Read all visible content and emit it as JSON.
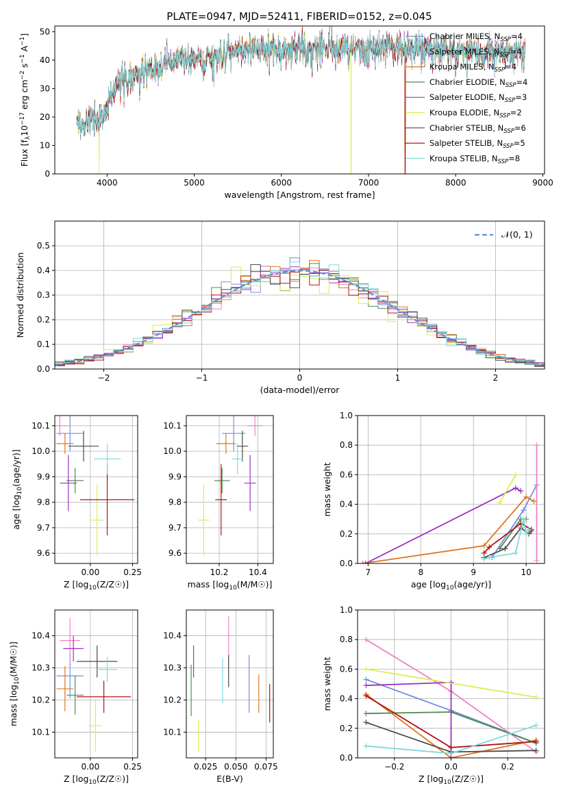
{
  "title": "PLATE=0947, MJD=52411, FIBERID=0152, z=0.045",
  "colors": {
    "Chabrier MILES": "#6f8fde",
    "Salpeter MILES": "#ee82c5",
    "Kroupa MILES": "#e0751e",
    "Chabrier ELODIE": "#4f8a4f",
    "Salpeter ELODIE": "#9b30c2",
    "Kroupa ELODIE": "#d7ef4f",
    "Chabrier STELIB": "#4a4a4a",
    "Salpeter STELIB": "#b01212",
    "Kroupa STELIB": "#7fd8dc",
    "gaussian": "#5b8fd8"
  },
  "chart_data": [
    {
      "type": "line",
      "xlabel": "wavelength [Angstrom, rest frame]",
      "ylabel": "Flux [f_λ10^-17 erg cm^-2 s^-1 A^-1]",
      "xlim": [
        3400,
        9020
      ],
      "ylim": [
        0,
        52
      ],
      "xticks": [
        4000,
        5000,
        6000,
        7000,
        8000,
        9000
      ],
      "yticks": [
        0,
        10,
        20,
        30,
        40,
        50
      ],
      "legend_position": "upper-right",
      "spectrum_continuum": [
        [
          3650,
          19
        ],
        [
          3750,
          17
        ],
        [
          3850,
          20
        ],
        [
          3950,
          20
        ],
        [
          4000,
          24
        ],
        [
          4100,
          31
        ],
        [
          4200,
          33
        ],
        [
          4300,
          34
        ],
        [
          4400,
          36
        ],
        [
          4500,
          37
        ],
        [
          4700,
          39
        ],
        [
          4900,
          41
        ],
        [
          5100,
          40
        ],
        [
          5200,
          40
        ],
        [
          5400,
          43
        ],
        [
          5600,
          44
        ],
        [
          5800,
          44
        ],
        [
          6000,
          44
        ],
        [
          6200,
          44
        ],
        [
          6400,
          44
        ],
        [
          6600,
          44
        ],
        [
          6800,
          44
        ],
        [
          7000,
          45
        ],
        [
          7200,
          45
        ],
        [
          7400,
          44
        ],
        [
          7600,
          44
        ],
        [
          7800,
          44
        ],
        [
          8000,
          43
        ],
        [
          8200,
          43
        ],
        [
          8400,
          43
        ],
        [
          8600,
          43
        ],
        [
          8800,
          43
        ]
      ],
      "series": [
        {
          "name": "Chabrier MILES",
          "nssp": "4"
        },
        {
          "name": "Salpeter MILES",
          "nssp": "4"
        },
        {
          "name": "Kroupa MILES",
          "nssp": "4"
        },
        {
          "name": "Chabrier ELODIE",
          "nssp": "4"
        },
        {
          "name": "Salpeter ELODIE",
          "nssp": "3"
        },
        {
          "name": "Kroupa ELODIE",
          "nssp": "2"
        },
        {
          "name": "Chabrier STELIB",
          "nssp": "6"
        },
        {
          "name": "Salpeter STELIB",
          "nssp": "5"
        },
        {
          "name": "Kroupa STELIB",
          "nssp": "8"
        }
      ],
      "drops": [
        {
          "series": "Kroupa ELODIE",
          "x": 3910
        },
        {
          "series": "Kroupa ELODIE",
          "x": 6800
        },
        {
          "series": "Kroupa MILES",
          "x": 7420
        },
        {
          "series": "Salpeter STELIB",
          "x": 7420
        }
      ]
    },
    {
      "type": "bar",
      "xlabel": "(data-model)/error",
      "ylabel": "Normed distribution",
      "xlim": [
        -2.5,
        2.5
      ],
      "ylim": [
        0,
        0.6
      ],
      "xticks": [
        -2,
        -1,
        0,
        1,
        2
      ],
      "yticks": [
        0.0,
        0.1,
        0.2,
        0.3,
        0.4,
        0.5
      ],
      "grid": true,
      "legend": "𝒩(0, 1)",
      "legend_position": "upper-right",
      "bin_width": 0.1
    },
    {
      "type": "scatter",
      "xlabel": "Z [log10(Z/Z☉)]",
      "ylabel": "age [log10(age/yr)]",
      "xlim": [
        -0.21,
        0.28
      ],
      "ylim": [
        9.56,
        10.14
      ],
      "xticks": [
        0.0,
        0.25
      ],
      "yticks": [
        9.6,
        9.7,
        9.8,
        9.9,
        10.0,
        10.1
      ],
      "grid": true,
      "points": [
        {
          "series": "Chabrier MILES",
          "x": -0.12,
          "y": 10.07,
          "xerr": 0.08,
          "yerr": 0.07
        },
        {
          "series": "Salpeter MILES",
          "x": -0.18,
          "y": 10.1,
          "xerr": 0.05,
          "yerr": 0.04
        },
        {
          "series": "Kroupa MILES",
          "x": -0.15,
          "y": 10.03,
          "xerr": 0.05,
          "yerr": 0.04
        },
        {
          "series": "Chabrier ELODIE",
          "x": -0.09,
          "y": 9.885,
          "xerr": 0.05,
          "yerr": 0.05
        },
        {
          "series": "Salpeter ELODIE",
          "x": -0.13,
          "y": 9.875,
          "xerr": 0.05,
          "yerr": 0.11
        },
        {
          "series": "Kroupa ELODIE",
          "x": 0.04,
          "y": 9.73,
          "xerr": 0.04,
          "yerr": 0.14
        },
        {
          "series": "Chabrier STELIB",
          "x": -0.04,
          "y": 10.02,
          "xerr": 0.09,
          "yerr": 0.06
        },
        {
          "series": "Salpeter STELIB",
          "x": 0.1,
          "y": 9.81,
          "xerr": 0.16,
          "yerr": 0.14
        },
        {
          "series": "Kroupa STELIB",
          "x": 0.1,
          "y": 9.97,
          "xerr": 0.08,
          "yerr": 0.06
        }
      ]
    },
    {
      "type": "scatter",
      "xlabel": "mass [log10(M/M☉)]",
      "ylabel": "",
      "xlim": [
        10.03,
        10.48
      ],
      "ylim": [
        9.56,
        10.14
      ],
      "xticks": [
        10.2,
        10.4
      ],
      "yticks": [
        9.6,
        9.7,
        9.8,
        9.9,
        10.0,
        10.1
      ],
      "grid": true,
      "points": [
        {
          "series": "Chabrier MILES",
          "x": 10.275,
          "y": 10.07,
          "xerr": 0.06,
          "yerr": 0.07
        },
        {
          "series": "Salpeter MILES",
          "x": 10.385,
          "y": 10.1,
          "xerr": 0.04,
          "yerr": 0.04
        },
        {
          "series": "Kroupa MILES",
          "x": 10.235,
          "y": 10.03,
          "xerr": 0.05,
          "yerr": 0.04
        },
        {
          "series": "Chabrier ELODIE",
          "x": 10.215,
          "y": 9.885,
          "xerr": 0.04,
          "yerr": 0.05
        },
        {
          "series": "Salpeter ELODIE",
          "x": 10.36,
          "y": 9.875,
          "xerr": 0.03,
          "yerr": 0.11
        },
        {
          "series": "Kroupa ELODIE",
          "x": 10.12,
          "y": 9.73,
          "xerr": 0.03,
          "yerr": 0.14
        },
        {
          "series": "Chabrier STELIB",
          "x": 10.32,
          "y": 10.02,
          "xerr": 0.03,
          "yerr": 0.06
        },
        {
          "series": "Salpeter STELIB",
          "x": 10.21,
          "y": 9.81,
          "xerr": 0.03,
          "yerr": 0.14
        },
        {
          "series": "Kroupa STELIB",
          "x": 10.295,
          "y": 9.97,
          "xerr": 0.03,
          "yerr": 0.06
        }
      ]
    },
    {
      "type": "line",
      "xlabel": "age [log10(age/yr)]",
      "ylabel": "mass weight",
      "xlim": [
        6.8,
        10.35
      ],
      "ylim": [
        0,
        1
      ],
      "xticks": [
        7,
        8,
        9,
        10
      ],
      "yticks": [
        0.0,
        0.2,
        0.4,
        0.6,
        0.8,
        1.0
      ],
      "grid": true,
      "series": [
        {
          "name": "Chabrier MILES",
          "points": [
            [
              9.35,
              0.04
            ],
            [
              9.95,
              0.36
            ],
            [
              10.2,
              0.53
            ]
          ]
        },
        {
          "name": "Salpeter MILES",
          "points": [
            [
              10.2,
              0.02
            ],
            [
              10.2,
              0.8
            ]
          ]
        },
        {
          "name": "Kroupa MILES",
          "points": [
            [
              6.9,
              0.0
            ],
            [
              9.2,
              0.12
            ],
            [
              10.0,
              0.45
            ],
            [
              10.15,
              0.42
            ]
          ]
        },
        {
          "name": "Chabrier ELODIE",
          "points": [
            [
              9.5,
              0.1
            ],
            [
              9.9,
              0.3
            ],
            [
              10.0,
              0.3
            ]
          ]
        },
        {
          "name": "Salpeter ELODIE",
          "points": [
            [
              6.95,
              0.0
            ],
            [
              9.8,
              0.51
            ],
            [
              9.9,
              0.49
            ]
          ]
        },
        {
          "name": "Kroupa ELODIE",
          "points": [
            [
              9.5,
              0.41
            ],
            [
              9.8,
              0.6
            ]
          ]
        },
        {
          "name": "Chabrier STELIB",
          "points": [
            [
              9.2,
              0.04
            ],
            [
              9.6,
              0.1
            ],
            [
              9.9,
              0.24
            ],
            [
              10.05,
              0.2
            ],
            [
              10.1,
              0.22
            ]
          ]
        },
        {
          "name": "Salpeter STELIB",
          "points": [
            [
              9.2,
              0.07
            ],
            [
              9.3,
              0.11
            ],
            [
              9.9,
              0.27
            ],
            [
              10.1,
              0.23
            ]
          ]
        },
        {
          "name": "Kroupa STELIB",
          "points": [
            [
              9.2,
              0.03
            ],
            [
              9.3,
              0.04
            ],
            [
              9.8,
              0.07
            ],
            [
              9.95,
              0.3
            ],
            [
              10.0,
              0.2
            ],
            [
              10.05,
              0.23
            ]
          ]
        }
      ]
    },
    {
      "type": "scatter",
      "xlabel": "Z [log10(Z/Z☉)]",
      "ylabel": "mass [log10(M/M☉)]",
      "xlim": [
        -0.21,
        0.28
      ],
      "ylim": [
        10.02,
        10.48
      ],
      "xticks": [
        0.0,
        0.25
      ],
      "yticks": [
        10.1,
        10.2,
        10.3,
        10.4
      ],
      "grid": true,
      "points": [
        {
          "series": "Chabrier MILES",
          "x": -0.12,
          "y": 10.275,
          "xerr": 0.08,
          "yerr": 0.07
        },
        {
          "series": "Salpeter MILES",
          "x": -0.12,
          "y": 10.385,
          "xerr": 0.06,
          "yerr": 0.07
        },
        {
          "series": "Kroupa MILES",
          "x": -0.15,
          "y": 10.235,
          "xerr": 0.05,
          "yerr": 0.07
        },
        {
          "series": "Chabrier ELODIE",
          "x": -0.09,
          "y": 10.215,
          "xerr": 0.05,
          "yerr": 0.06
        },
        {
          "series": "Salpeter ELODIE",
          "x": -0.1,
          "y": 10.36,
          "xerr": 0.06,
          "yerr": 0.04
        },
        {
          "series": "Kroupa ELODIE",
          "x": 0.03,
          "y": 10.12,
          "xerr": 0.04,
          "yerr": 0.08
        },
        {
          "series": "Chabrier STELIB",
          "x": 0.04,
          "y": 10.32,
          "xerr": 0.12,
          "yerr": 0.05
        },
        {
          "series": "Salpeter STELIB",
          "x": 0.08,
          "y": 10.21,
          "xerr": 0.16,
          "yerr": 0.05
        },
        {
          "series": "Kroupa STELIB",
          "x": 0.1,
          "y": 10.295,
          "xerr": 0.06,
          "yerr": 0.04
        }
      ]
    },
    {
      "type": "scatter",
      "xlabel": "E(B-V)",
      "ylabel": "",
      "xlim": [
        0.009,
        0.081
      ],
      "ylim": [
        10.02,
        10.48
      ],
      "xticks": [
        0.025,
        0.05,
        0.075
      ],
      "yticks": [
        10.1,
        10.2,
        10.3,
        10.4
      ],
      "grid": true,
      "points": [
        {
          "series": "Chabrier MILES",
          "x": 0.061,
          "y": 10.25,
          "yerr": 0.09
        },
        {
          "series": "Salpeter MILES",
          "x": 0.044,
          "y": 10.38,
          "yerr": 0.08
        },
        {
          "series": "Kroupa MILES",
          "x": 0.069,
          "y": 10.22,
          "yerr": 0.06
        },
        {
          "series": "Chabrier ELODIE",
          "x": 0.013,
          "y": 10.23,
          "yerr": 0.08
        },
        {
          "series": "Salpeter ELODIE",
          "x": 0.015,
          "y": 10.32,
          "yerr": 0.05
        },
        {
          "series": "Kroupa ELODIE",
          "x": 0.019,
          "y": 10.09,
          "yerr": 0.05
        },
        {
          "series": "Chabrier STELIB",
          "x": 0.044,
          "y": 10.29,
          "yerr": 0.05
        },
        {
          "series": "Salpeter STELIB",
          "x": 0.078,
          "y": 10.19,
          "yerr": 0.06
        },
        {
          "series": "Kroupa STELIB",
          "x": 0.039,
          "y": 10.26,
          "yerr": 0.07
        }
      ]
    },
    {
      "type": "line",
      "xlabel": "Z [log10(Z/Z☉)]",
      "ylabel": "mass weight",
      "xlim": [
        -0.33,
        0.33
      ],
      "ylim": [
        0,
        1
      ],
      "xticks": [
        -0.2,
        0.0,
        0.2
      ],
      "yticks": [
        0.0,
        0.2,
        0.4,
        0.6,
        0.8,
        1.0
      ],
      "grid": true,
      "series": [
        {
          "name": "Chabrier MILES",
          "points": [
            [
              -0.3,
              0.53
            ],
            [
              0.0,
              0.32
            ],
            [
              0.3,
              0.1
            ]
          ]
        },
        {
          "name": "Salpeter MILES",
          "points": [
            [
              -0.3,
              0.8
            ],
            [
              0.0,
              0.45
            ],
            [
              0.3,
              0.04
            ]
          ]
        },
        {
          "name": "Kroupa MILES",
          "points": [
            [
              -0.3,
              0.43
            ],
            [
              0.0,
              0.0
            ],
            [
              0.3,
              0.12
            ]
          ]
        },
        {
          "name": "Chabrier ELODIE",
          "points": [
            [
              -0.3,
              0.3
            ],
            [
              0.0,
              0.31
            ],
            [
              0.3,
              0.1
            ]
          ]
        },
        {
          "name": "Salpeter ELODIE",
          "points": [
            [
              -0.3,
              0.49
            ],
            [
              0.0,
              0.51
            ],
            [
              0.0,
              0.0
            ]
          ]
        },
        {
          "name": "Kroupa ELODIE",
          "points": [
            [
              -0.3,
              0.6
            ],
            [
              0.3,
              0.41
            ]
          ]
        },
        {
          "name": "Chabrier STELIB",
          "points": [
            [
              -0.3,
              0.24
            ],
            [
              0.0,
              0.04
            ],
            [
              0.3,
              0.05
            ]
          ]
        },
        {
          "name": "Salpeter STELIB",
          "points": [
            [
              -0.3,
              0.42
            ],
            [
              0.0,
              0.07
            ],
            [
              0.3,
              0.11
            ]
          ]
        },
        {
          "name": "Kroupa STELIB",
          "points": [
            [
              -0.3,
              0.08
            ],
            [
              0.0,
              0.03
            ],
            [
              0.3,
              0.22
            ]
          ]
        }
      ]
    }
  ]
}
